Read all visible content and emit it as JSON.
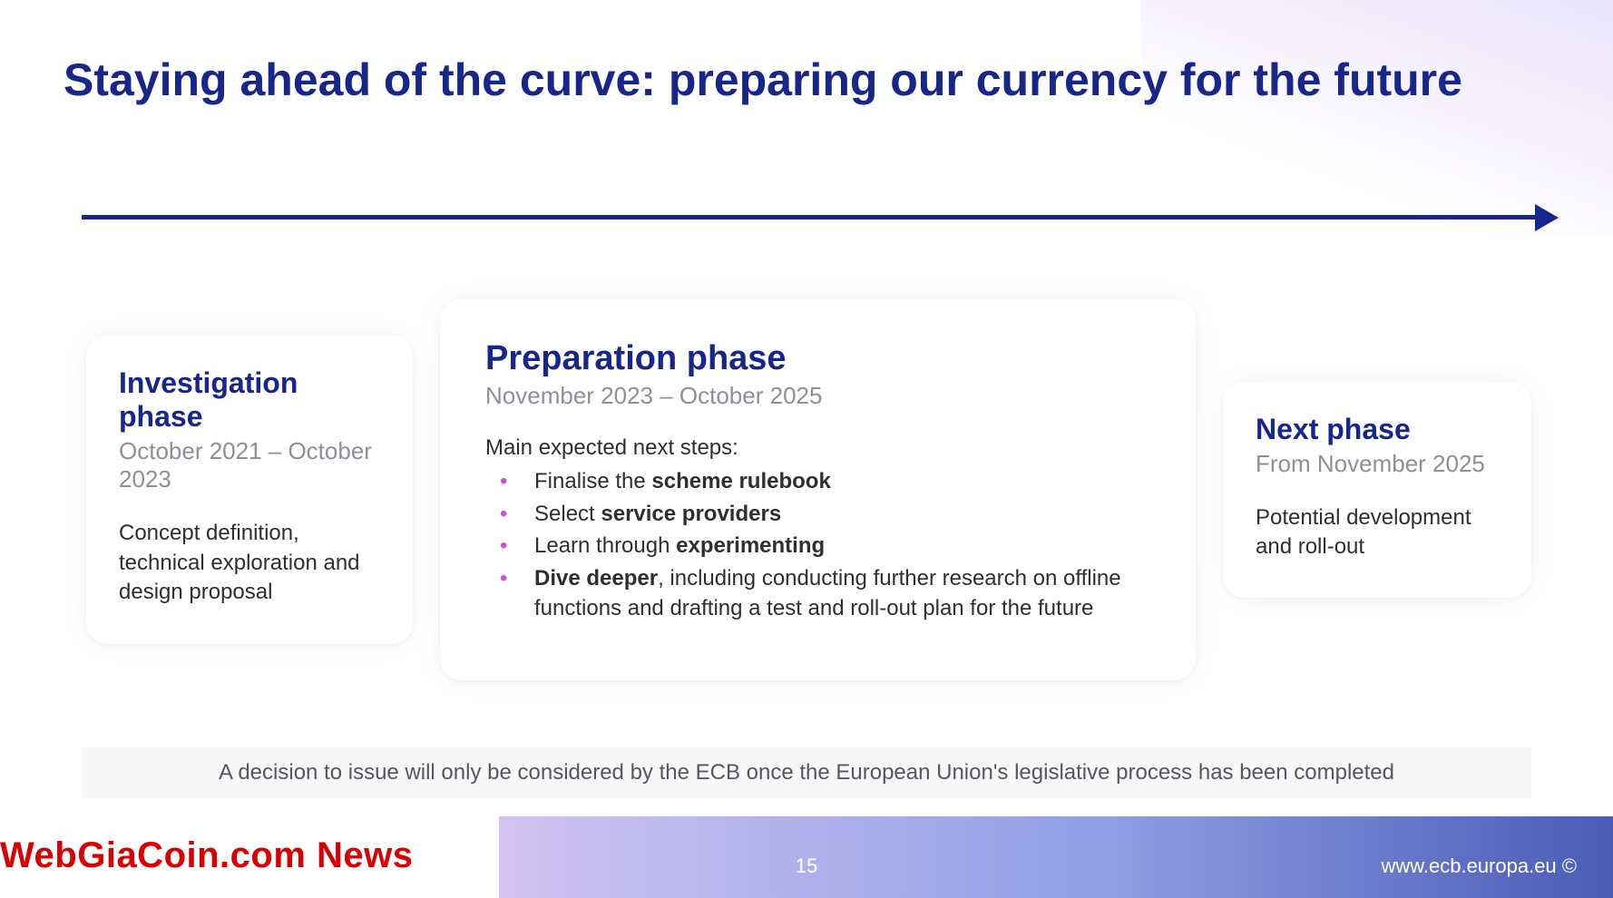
{
  "colors": {
    "title": "#17268a",
    "subtext": "#8f8f98",
    "body": "#2f2f2f",
    "bullet": "#d04fd0",
    "watermark": "#d80000",
    "footer_text": "#ffffff",
    "arrow": "#17268a",
    "card_bg": "#ffffff",
    "note_bg": "#f7f7f8"
  },
  "title": "Staying ahead of the curve: preparing our currency for the future",
  "phases": {
    "investigation": {
      "title": "Investigation phase",
      "dates": "October 2021 – October 2023",
      "body": "Concept definition, technical exploration and design proposal"
    },
    "preparation": {
      "title": "Preparation phase",
      "dates": "November 2023 – October 2025",
      "steps_label": "Main expected next steps:",
      "steps": [
        {
          "pre": "Finalise the ",
          "bold": "scheme rulebook",
          "post": ""
        },
        {
          "pre": "Select ",
          "bold": "service providers",
          "post": ""
        },
        {
          "pre": "Learn through ",
          "bold": "experimenting",
          "post": ""
        },
        {
          "pre": "",
          "bold": "Dive deeper",
          "post": ", including conducting further research on offline functions and drafting a test and roll-out plan for the future"
        }
      ]
    },
    "next": {
      "title": "Next phase",
      "dates": "From November 2025",
      "body": "Potential development and roll-out"
    }
  },
  "footer_note": "A decision to issue will only be considered by the ECB once the European Union's legislative process has been completed",
  "watermark": "WebGiaCoin.com News",
  "page_number": "15",
  "footer_url": "www.ecb.europa.eu ©"
}
